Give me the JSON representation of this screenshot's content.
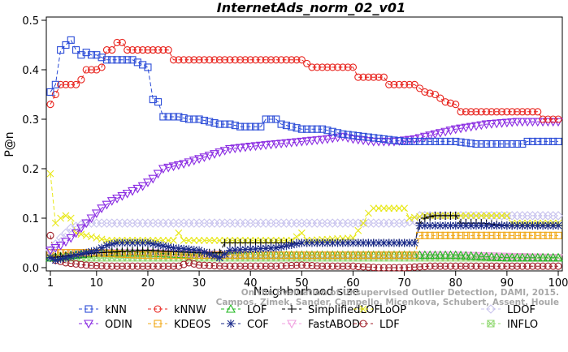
{
  "chart_data": {
    "type": "line",
    "title": "InternetAds_norm_02_v01",
    "xlabel": "Neighborhood size",
    "ylabel": "P@n",
    "xlim": [
      1,
      100
    ],
    "ylim": [
      0,
      0.5
    ],
    "xticks": [
      1,
      10,
      20,
      30,
      40,
      50,
      60,
      70,
      80,
      90,
      100
    ],
    "yticks": [
      0.0,
      0.1,
      0.2,
      0.3,
      0.4,
      0.5
    ],
    "legend_position": "bottom",
    "watermark": [
      "On the Evaluation of Unsupervised Outlier Detection, DAMI, 2015.",
      "Campos, Zimek, Sander, Campello, Micenkova, Schubert, Assent, Houle"
    ],
    "series": [
      {
        "name": "kNN",
        "color": "#2a4bd7",
        "marker": "square",
        "dash": "5,3",
        "points": [
          [
            1,
            0.355
          ],
          [
            2,
            0.37
          ],
          [
            3,
            0.44
          ],
          [
            4,
            0.45
          ],
          [
            5,
            0.46
          ],
          [
            6,
            0.44
          ],
          [
            7,
            0.43
          ],
          [
            8,
            0.435
          ],
          [
            9,
            0.43
          ],
          [
            10,
            0.43
          ],
          [
            11,
            0.425
          ],
          [
            12,
            0.42
          ],
          [
            13,
            0.42
          ],
          [
            15,
            0.42
          ],
          [
            17,
            0.42
          ],
          [
            18,
            0.415
          ],
          [
            19,
            0.41
          ],
          [
            20,
            0.405
          ],
          [
            21,
            0.34
          ],
          [
            22,
            0.335
          ],
          [
            23,
            0.305
          ],
          [
            26,
            0.305
          ],
          [
            28,
            0.3
          ],
          [
            30,
            0.3
          ],
          [
            32,
            0.295
          ],
          [
            34,
            0.29
          ],
          [
            36,
            0.29
          ],
          [
            38,
            0.285
          ],
          [
            40,
            0.285
          ],
          [
            42,
            0.285
          ],
          [
            43,
            0.3
          ],
          [
            45,
            0.3
          ],
          [
            46,
            0.29
          ],
          [
            48,
            0.285
          ],
          [
            50,
            0.28
          ],
          [
            54,
            0.28
          ],
          [
            58,
            0.27
          ],
          [
            62,
            0.265
          ],
          [
            66,
            0.26
          ],
          [
            70,
            0.255
          ],
          [
            76,
            0.255
          ],
          [
            80,
            0.255
          ],
          [
            84,
            0.25
          ],
          [
            90,
            0.25
          ],
          [
            93,
            0.25
          ],
          [
            94,
            0.255
          ],
          [
            100,
            0.255
          ]
        ]
      },
      {
        "name": "kNNW",
        "color": "#e8231d",
        "marker": "circle",
        "dash": "5,3",
        "points": [
          [
            1,
            0.33
          ],
          [
            2,
            0.35
          ],
          [
            3,
            0.37
          ],
          [
            4,
            0.37
          ],
          [
            5,
            0.37
          ],
          [
            6,
            0.37
          ],
          [
            7,
            0.38
          ],
          [
            8,
            0.4
          ],
          [
            10,
            0.4
          ],
          [
            11,
            0.405
          ],
          [
            12,
            0.44
          ],
          [
            13,
            0.44
          ],
          [
            14,
            0.455
          ],
          [
            15,
            0.455
          ],
          [
            16,
            0.44
          ],
          [
            20,
            0.44
          ],
          [
            24,
            0.44
          ],
          [
            25,
            0.42
          ],
          [
            30,
            0.42
          ],
          [
            40,
            0.42
          ],
          [
            50,
            0.42
          ],
          [
            52,
            0.405
          ],
          [
            55,
            0.405
          ],
          [
            60,
            0.405
          ],
          [
            61,
            0.385
          ],
          [
            64,
            0.385
          ],
          [
            66,
            0.385
          ],
          [
            67,
            0.37
          ],
          [
            72,
            0.37
          ],
          [
            74,
            0.355
          ],
          [
            76,
            0.35
          ],
          [
            78,
            0.335
          ],
          [
            80,
            0.33
          ],
          [
            81,
            0.315
          ],
          [
            90,
            0.315
          ],
          [
            96,
            0.315
          ],
          [
            97,
            0.3
          ],
          [
            100,
            0.3
          ]
        ]
      },
      {
        "name": "LOF",
        "color": "#22b922",
        "marker": "triangle-up",
        "dash": "5,3",
        "points": [
          [
            1,
            0.02
          ],
          [
            5,
            0.025
          ],
          [
            10,
            0.03
          ],
          [
            20,
            0.03
          ],
          [
            30,
            0.025
          ],
          [
            40,
            0.025
          ],
          [
            50,
            0.025
          ],
          [
            60,
            0.025
          ],
          [
            70,
            0.025
          ],
          [
            80,
            0.025
          ],
          [
            90,
            0.02
          ],
          [
            100,
            0.02
          ]
        ]
      },
      {
        "name": "SimplifiedLOF",
        "color": "#000000",
        "marker": "plus",
        "dash": "5,3",
        "points": [
          [
            1,
            0.02
          ],
          [
            5,
            0.025
          ],
          [
            10,
            0.03
          ],
          [
            20,
            0.035
          ],
          [
            30,
            0.03
          ],
          [
            34,
            0.03
          ],
          [
            35,
            0.05
          ],
          [
            40,
            0.05
          ],
          [
            50,
            0.05
          ],
          [
            60,
            0.05
          ],
          [
            70,
            0.05
          ],
          [
            72,
            0.05
          ],
          [
            73,
            0.09
          ],
          [
            74,
            0.1
          ],
          [
            76,
            0.105
          ],
          [
            80,
            0.105
          ],
          [
            81,
            0.09
          ],
          [
            85,
            0.09
          ],
          [
            90,
            0.085
          ],
          [
            100,
            0.085
          ]
        ]
      },
      {
        "name": "LoOP",
        "color": "#e8e81a",
        "marker": "x",
        "dash": "5,3",
        "points": [
          [
            1,
            0.19
          ],
          [
            2,
            0.09
          ],
          [
            3,
            0.1
          ],
          [
            4,
            0.105
          ],
          [
            5,
            0.1
          ],
          [
            6,
            0.07
          ],
          [
            8,
            0.065
          ],
          [
            10,
            0.06
          ],
          [
            12,
            0.055
          ],
          [
            20,
            0.055
          ],
          [
            25,
            0.055
          ],
          [
            26,
            0.07
          ],
          [
            27,
            0.055
          ],
          [
            35,
            0.055
          ],
          [
            48,
            0.055
          ],
          [
            50,
            0.07
          ],
          [
            51,
            0.055
          ],
          [
            60,
            0.06
          ],
          [
            62,
            0.09
          ],
          [
            63,
            0.11
          ],
          [
            64,
            0.12
          ],
          [
            70,
            0.12
          ],
          [
            71,
            0.1
          ],
          [
            74,
            0.105
          ],
          [
            80,
            0.105
          ],
          [
            90,
            0.105
          ],
          [
            91,
            0.09
          ],
          [
            100,
            0.09
          ]
        ]
      },
      {
        "name": "LDOF",
        "color": "#c9c4ee",
        "marker": "diamond",
        "dash": "5,3",
        "points": [
          [
            1,
            0.035
          ],
          [
            3,
            0.06
          ],
          [
            5,
            0.08
          ],
          [
            8,
            0.09
          ],
          [
            20,
            0.09
          ],
          [
            40,
            0.09
          ],
          [
            60,
            0.09
          ],
          [
            70,
            0.09
          ],
          [
            72,
            0.095
          ],
          [
            73,
            0.105
          ],
          [
            80,
            0.105
          ],
          [
            100,
            0.105
          ]
        ]
      },
      {
        "name": "ODIN",
        "color": "#8a2be2",
        "marker": "triangle-down",
        "dash": "5,3",
        "points": [
          [
            1,
            0.035
          ],
          [
            3,
            0.045
          ],
          [
            5,
            0.06
          ],
          [
            7,
            0.08
          ],
          [
            9,
            0.1
          ],
          [
            11,
            0.12
          ],
          [
            13,
            0.135
          ],
          [
            15,
            0.145
          ],
          [
            17,
            0.155
          ],
          [
            19,
            0.165
          ],
          [
            21,
            0.18
          ],
          [
            23,
            0.2
          ],
          [
            25,
            0.205
          ],
          [
            27,
            0.21
          ],
          [
            30,
            0.22
          ],
          [
            33,
            0.23
          ],
          [
            36,
            0.24
          ],
          [
            40,
            0.245
          ],
          [
            45,
            0.25
          ],
          [
            50,
            0.255
          ],
          [
            55,
            0.26
          ],
          [
            58,
            0.265
          ],
          [
            60,
            0.26
          ],
          [
            64,
            0.255
          ],
          [
            68,
            0.255
          ],
          [
            72,
            0.26
          ],
          [
            76,
            0.27
          ],
          [
            80,
            0.28
          ],
          [
            86,
            0.29
          ],
          [
            92,
            0.295
          ],
          [
            100,
            0.295
          ]
        ]
      },
      {
        "name": "KDEOS",
        "color": "#f0a818",
        "marker": "square",
        "dash": "5,3",
        "points": [
          [
            1,
            0.03
          ],
          [
            10,
            0.03
          ],
          [
            20,
            0.025
          ],
          [
            40,
            0.025
          ],
          [
            60,
            0.025
          ],
          [
            70,
            0.025
          ],
          [
            72,
            0.025
          ],
          [
            73,
            0.065
          ],
          [
            80,
            0.065
          ],
          [
            100,
            0.065
          ]
        ]
      },
      {
        "name": "COF",
        "color": "#1a2a8a",
        "marker": "asterisk",
        "dash": "5,3",
        "points": [
          [
            1,
            0.02
          ],
          [
            2,
            0.015
          ],
          [
            4,
            0.02
          ],
          [
            6,
            0.025
          ],
          [
            8,
            0.03
          ],
          [
            10,
            0.035
          ],
          [
            12,
            0.045
          ],
          [
            14,
            0.05
          ],
          [
            20,
            0.05
          ],
          [
            25,
            0.04
          ],
          [
            30,
            0.035
          ],
          [
            34,
            0.02
          ],
          [
            36,
            0.035
          ],
          [
            45,
            0.04
          ],
          [
            50,
            0.05
          ],
          [
            60,
            0.05
          ],
          [
            64,
            0.05
          ],
          [
            70,
            0.05
          ],
          [
            72,
            0.05
          ],
          [
            73,
            0.085
          ],
          [
            80,
            0.085
          ],
          [
            90,
            0.085
          ],
          [
            100,
            0.085
          ]
        ]
      },
      {
        "name": "FastABOD",
        "color": "#f0a0e0",
        "marker": "triangle-down",
        "dash": "5,3",
        "points": [
          [
            1,
            0.03
          ],
          [
            20,
            0.03
          ],
          [
            40,
            0.025
          ],
          [
            60,
            0.025
          ],
          [
            80,
            0.025
          ],
          [
            100,
            0.02
          ]
        ]
      },
      {
        "name": "LDF",
        "color": "#a0202a",
        "marker": "circle",
        "dash": "5,3",
        "points": [
          [
            1,
            0.065
          ],
          [
            2,
            0.015
          ],
          [
            4,
            0.01
          ],
          [
            8,
            0.005
          ],
          [
            12,
            0.003
          ],
          [
            20,
            0.003
          ],
          [
            26,
            0.003
          ],
          [
            28,
            0.01
          ],
          [
            30,
            0.005
          ],
          [
            35,
            0.003
          ],
          [
            45,
            0.003
          ],
          [
            50,
            0.005
          ],
          [
            54,
            0.003
          ],
          [
            60,
            0.003
          ],
          [
            65,
            0.0
          ],
          [
            70,
            0.0
          ],
          [
            75,
            0.003
          ],
          [
            80,
            0.003
          ],
          [
            100,
            0.003
          ]
        ]
      },
      {
        "name": "INFLO",
        "color": "#90d870",
        "marker": "boxtimes",
        "dash": "5,3",
        "points": [
          [
            1,
            0.02
          ],
          [
            10,
            0.02
          ],
          [
            20,
            0.02
          ],
          [
            40,
            0.02
          ],
          [
            60,
            0.02
          ],
          [
            80,
            0.02
          ],
          [
            100,
            0.02
          ]
        ]
      }
    ],
    "legend": [
      [
        "kNN",
        "kNNW",
        "LOF",
        "SimplifiedLOF",
        "LoOP",
        "LDOF"
      ],
      [
        "ODIN",
        "KDEOS",
        "COF",
        "FastABOD",
        "LDF",
        "INFLO"
      ]
    ]
  }
}
